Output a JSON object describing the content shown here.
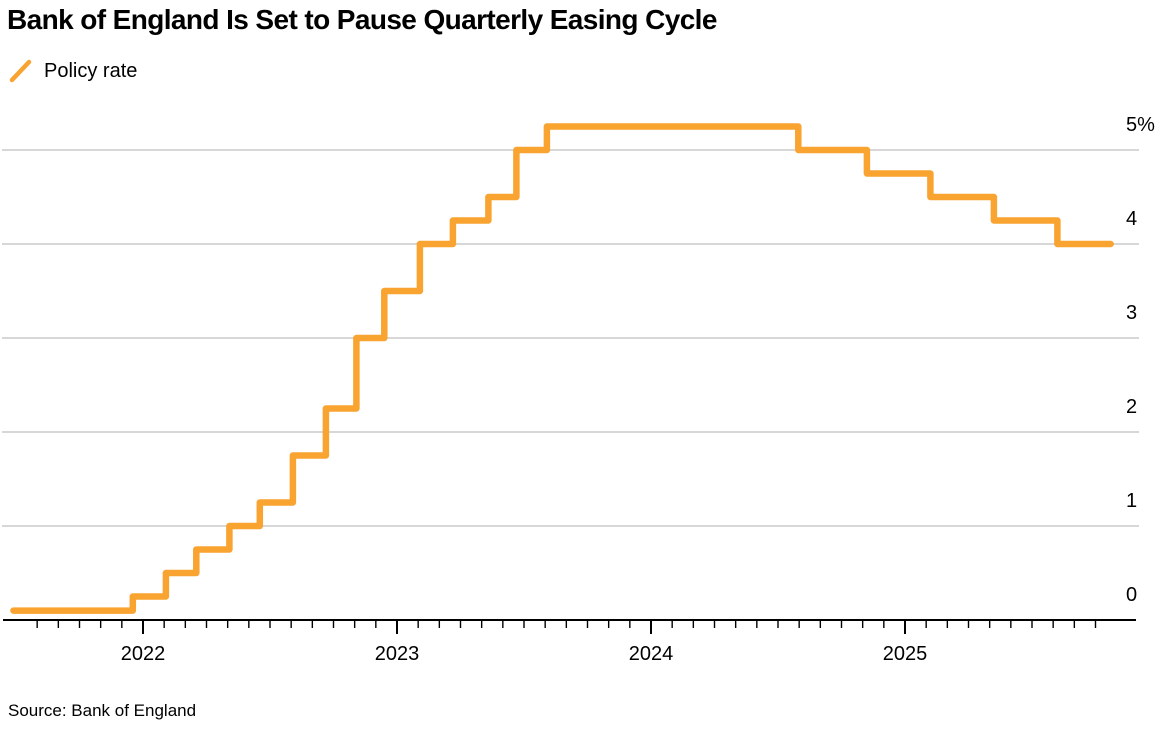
{
  "header": {
    "title": "Bank of England Is Set to Pause Quarterly Easing Cycle"
  },
  "legend": {
    "label": "Policy rate"
  },
  "source": "Source: Bank of England",
  "colors": {
    "line": "#F9A331",
    "grid": "#D7D7D7",
    "axis": "#000000",
    "text": "#000000"
  },
  "chart_data": {
    "type": "line",
    "subtype": "step-after",
    "title": "Bank of England Is Set to Pause Quarterly Easing Cycle",
    "series_name": "Policy rate",
    "unit": "percent",
    "ylim": [
      0,
      5.6
    ],
    "grid": "horizontal",
    "legend_position": "top-left",
    "y_ticks": [
      {
        "value": 0,
        "label": "0"
      },
      {
        "value": 1,
        "label": "1"
      },
      {
        "value": 2,
        "label": "2"
      },
      {
        "value": 3,
        "label": "3"
      },
      {
        "value": 4,
        "label": "4"
      },
      {
        "value": 5,
        "label": "5%"
      }
    ],
    "x_year_labels": [
      {
        "year": 2022,
        "label": "2022"
      },
      {
        "year": 2023,
        "label": "2023"
      },
      {
        "year": 2024,
        "label": "2024"
      },
      {
        "year": 2025,
        "label": "2025"
      }
    ],
    "x_tick_interval": "monthly",
    "x_tick_range": [
      2021.583,
      2025.75
    ],
    "x_start": 2021.49,
    "x_end": 2025.81,
    "points": [
      {
        "date": "2021-07",
        "t": 2021.49,
        "rate": 0.1
      },
      {
        "date": "2021-12",
        "t": 2021.96,
        "rate": 0.25
      },
      {
        "date": "2022-02",
        "t": 2022.09,
        "rate": 0.5
      },
      {
        "date": "2022-03",
        "t": 2022.21,
        "rate": 0.75
      },
      {
        "date": "2022-05",
        "t": 2022.34,
        "rate": 1.0
      },
      {
        "date": "2022-06",
        "t": 2022.46,
        "rate": 1.25
      },
      {
        "date": "2022-08",
        "t": 2022.59,
        "rate": 1.75
      },
      {
        "date": "2022-09",
        "t": 2022.72,
        "rate": 2.25
      },
      {
        "date": "2022-11",
        "t": 2022.84,
        "rate": 3.0
      },
      {
        "date": "2022-12",
        "t": 2022.95,
        "rate": 3.5
      },
      {
        "date": "2023-02",
        "t": 2023.09,
        "rate": 4.0
      },
      {
        "date": "2023-03",
        "t": 2023.22,
        "rate": 4.25
      },
      {
        "date": "2023-05",
        "t": 2023.36,
        "rate": 4.5
      },
      {
        "date": "2023-06",
        "t": 2023.47,
        "rate": 5.0
      },
      {
        "date": "2023-08",
        "t": 2023.59,
        "rate": 5.25
      },
      {
        "date": "2024-08",
        "t": 2024.58,
        "rate": 5.0
      },
      {
        "date": "2024-11",
        "t": 2024.85,
        "rate": 4.75
      },
      {
        "date": "2025-02",
        "t": 2025.1,
        "rate": 4.5
      },
      {
        "date": "2025-05",
        "t": 2025.35,
        "rate": 4.25
      },
      {
        "date": "2025-08",
        "t": 2025.6,
        "rate": 4.0
      }
    ]
  }
}
